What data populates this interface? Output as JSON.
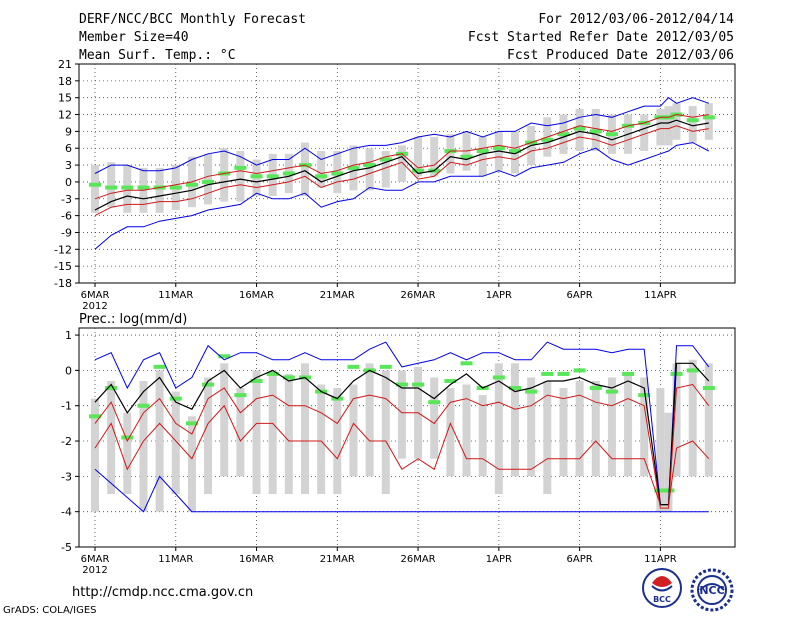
{
  "header": {
    "title": "DERF/NCC/BCC Monthly Forecast",
    "member_size": "Member Size=40",
    "variable": "Mean Surf. Temp.: °C",
    "period": "For 2012/03/06-2012/04/14",
    "start_date": "Fcst Started Refer Date 2012/03/05",
    "produced_date": "Fcst Produced Date 2012/03/06"
  },
  "footer": {
    "url": "http://cmdp.ncc.cma.gov.cn",
    "credit": "GrADS: COLA/IGES",
    "logo_bcc": "BCC",
    "logo_ncc": "NCC"
  },
  "colors": {
    "box": "#d3d3d3",
    "median": "#59e659",
    "mean": "#000000",
    "inner": "#d01818",
    "outer": "#0000e8",
    "grid": "#444444"
  },
  "chart_data": [
    {
      "type": "box-plume",
      "title": "Mean Surf. Temp.: °C",
      "ylabel": "°C",
      "ylim": [
        -18,
        21
      ],
      "yticks": [
        -18,
        -15,
        -12,
        -9,
        -6,
        -3,
        0,
        3,
        6,
        9,
        12,
        15,
        18,
        21
      ],
      "xlim": [
        0,
        39
      ],
      "xticks": [
        0,
        5,
        10,
        15,
        20,
        25,
        30,
        35
      ],
      "xticklabels": [
        "6MAR",
        "11MAR",
        "16MAR",
        "21MAR",
        "26MAR",
        "1APR",
        "6APR",
        "11APR"
      ],
      "year_label": "2012",
      "day_index": [
        0,
        1,
        2,
        3,
        4,
        5,
        6,
        7,
        8,
        9,
        10,
        11,
        12,
        13,
        14,
        15,
        16,
        17,
        18,
        19,
        20,
        21,
        22,
        23,
        24,
        25,
        26,
        27,
        28,
        29,
        30,
        31,
        32,
        33,
        34,
        35,
        35.5,
        36,
        37,
        38
      ],
      "box_low": [
        -5.5,
        -4.5,
        -5.5,
        -5.5,
        -5.5,
        -5,
        -4.5,
        -4,
        -3.5,
        -3.5,
        -2.5,
        -2.5,
        -2,
        -2.5,
        -1,
        -2,
        -1.5,
        -1.5,
        -1,
        0,
        1,
        1,
        1.5,
        2,
        1,
        2,
        1.5,
        3,
        4.5,
        5,
        5.5,
        5.5,
        5,
        5,
        5.5,
        6.5,
        6.5,
        7.5,
        7,
        7.5
      ],
      "box_high": [
        3,
        3.5,
        3,
        2.5,
        2.5,
        3,
        4.5,
        5,
        6,
        5.5,
        4,
        5,
        5,
        7,
        5.5,
        5.5,
        6.5,
        6,
        5.5,
        6.5,
        8,
        8,
        8.5,
        9,
        8,
        9,
        9,
        10,
        11.5,
        12,
        13,
        13,
        12,
        12,
        12,
        13,
        13.5,
        14,
        13.5,
        14
      ],
      "median": [
        -0.5,
        -1,
        -1,
        -1,
        -1,
        -1,
        -0.5,
        0,
        1.5,
        2.5,
        1,
        1,
        1.5,
        3,
        1,
        1.5,
        2.5,
        3,
        4,
        5,
        2,
        2,
        5.5,
        4.5,
        5.5,
        6,
        5.5,
        7,
        7.5,
        8.5,
        9.5,
        9,
        8.5,
        10,
        10.5,
        11.5,
        11.5,
        12,
        11,
        11.5
      ],
      "series": [
        {
          "name": "max",
          "color": "outer",
          "values": [
            -12,
            -9.5,
            -8,
            -8,
            -7,
            -6.5,
            -6,
            -5,
            -4.5,
            -4,
            -2,
            -3,
            -3,
            -2,
            -4.5,
            -3.5,
            -3,
            -1,
            -1.5,
            -1.5,
            0,
            0,
            1,
            1,
            1,
            2,
            1,
            2.5,
            3,
            3.5,
            5,
            6,
            4,
            3,
            4,
            5,
            5.5,
            6.5,
            7,
            5.5
          ]
        },
        {
          "name": "min",
          "color": "outer",
          "values": [
            1.5,
            3,
            3,
            2,
            2,
            2.5,
            4,
            5,
            5.5,
            4.5,
            3,
            4,
            4,
            6,
            4,
            5,
            6,
            6.5,
            6.5,
            7,
            8,
            8.5,
            8,
            9,
            8,
            9,
            9,
            10.5,
            10,
            10.5,
            11.5,
            12,
            11.5,
            12.5,
            13.5,
            13.5,
            15,
            14,
            15,
            14
          ]
        },
        {
          "name": "q_low",
          "color": "inner",
          "values": [
            -6,
            -4.5,
            -4,
            -4,
            -3.5,
            -3.5,
            -3,
            -2,
            -1,
            -0.5,
            -1,
            -0.5,
            0,
            1,
            -1,
            0,
            0.5,
            1.5,
            2.5,
            3.5,
            0.5,
            1,
            3.5,
            3,
            4,
            4.5,
            4,
            5.5,
            6,
            7,
            8,
            7.5,
            6.5,
            7.5,
            8.5,
            9.5,
            9.5,
            10,
            9,
            9.5
          ]
        },
        {
          "name": "mean",
          "color": "mean",
          "values": [
            -5,
            -3.5,
            -2.5,
            -3,
            -2.5,
            -2,
            -1.5,
            -0.5,
            0,
            0.5,
            0,
            0.5,
            1,
            2,
            0,
            1,
            2,
            2.5,
            3.5,
            4.5,
            1.5,
            2,
            4.5,
            4,
            5,
            5.5,
            5,
            6.5,
            7,
            8,
            9,
            8.5,
            7.5,
            8.5,
            9.5,
            10.5,
            10.5,
            11,
            10,
            10.5
          ]
        },
        {
          "name": "q_high",
          "color": "inner",
          "values": [
            -3,
            -2,
            -1.5,
            -1.5,
            -1,
            -0.5,
            0,
            1,
            1.5,
            2,
            1.5,
            2,
            2.5,
            3,
            1.5,
            2,
            3,
            3.5,
            4.5,
            5,
            2.5,
            3,
            5.5,
            5.5,
            6,
            6.5,
            6,
            7,
            8,
            9,
            10,
            9.5,
            9,
            10,
            10.5,
            11.5,
            11.5,
            12,
            11.5,
            12
          ]
        }
      ]
    },
    {
      "type": "box-plume",
      "title": "Prec.: log(mm/d)",
      "ylabel": "log(mm/d)",
      "ylim": [
        -5,
        1.2
      ],
      "yticks": [
        -5,
        -4,
        -3,
        -2,
        -1,
        0,
        1
      ],
      "xlim": [
        0,
        39
      ],
      "xticks": [
        0,
        5,
        10,
        15,
        20,
        25,
        30,
        35
      ],
      "xticklabels": [
        "6MAR",
        "11MAR",
        "16MAR",
        "21MAR",
        "26MAR",
        "1APR",
        "6APR",
        "11APR"
      ],
      "year_label": "2012",
      "day_index": [
        0,
        1,
        2,
        3,
        4,
        5,
        6,
        7,
        8,
        9,
        10,
        11,
        12,
        13,
        14,
        15,
        16,
        17,
        18,
        19,
        20,
        21,
        22,
        23,
        24,
        25,
        26,
        27,
        28,
        29,
        30,
        31,
        32,
        33,
        34,
        35,
        35.5,
        36,
        37,
        38
      ],
      "box_low": [
        -4,
        -3.5,
        -3.5,
        -4,
        -4,
        -3.5,
        -4,
        -3.5,
        -3,
        -3,
        -3.5,
        -3.5,
        -3.5,
        -3.5,
        -3.5,
        -3.5,
        -3,
        -3,
        -3.5,
        -2.5,
        -2.5,
        -2.5,
        -3,
        -3,
        -3,
        -3.5,
        -3,
        -3,
        -3.5,
        -3,
        -3,
        -3,
        -3,
        -3,
        -3,
        -4,
        -4,
        -3,
        -3,
        -3
      ],
      "box_high": [
        -0.8,
        -0.3,
        -1.2,
        -0.3,
        0,
        -0.6,
        -1.3,
        -0.2,
        0.2,
        -0.5,
        0,
        0,
        -0.1,
        0.2,
        -0.4,
        -0.5,
        -0.4,
        0.2,
        0,
        0,
        0.1,
        -0.2,
        -0.5,
        -0.4,
        -0.7,
        0.2,
        0.2,
        -0.2,
        -0.3,
        -0.5,
        -0.3,
        -0.3,
        -0.2,
        -0.1,
        -0.2,
        -0.5,
        -1.2,
        0.2,
        0.3,
        0.2
      ],
      "median": [
        -1.3,
        -0.5,
        -1.9,
        -1,
        0.1,
        -0.8,
        -1.5,
        -0.4,
        0.4,
        -0.7,
        -0.3,
        -0.1,
        -0.2,
        -0.2,
        -0.6,
        -0.8,
        0.1,
        0,
        0.1,
        -0.4,
        -0.4,
        -0.9,
        -0.3,
        0.2,
        -0.5,
        -0.2,
        -0.5,
        -0.6,
        -0.1,
        -0.1,
        0,
        -0.5,
        -0.6,
        -0.1,
        -0.7,
        -3.4,
        -3.4,
        -0.1,
        0,
        -0.5
      ],
      "series": [
        {
          "name": "max",
          "color": "outer",
          "values": [
            -2.8,
            -3.2,
            -3.6,
            -4,
            -3,
            -3.5,
            -4,
            -4,
            -4,
            -4,
            -4,
            -4,
            -4,
            -4,
            -4,
            -4,
            -4,
            -4,
            -4,
            -4,
            -4,
            -4,
            -4,
            -4,
            -4,
            -4,
            -4,
            -4,
            -4,
            -4,
            -4,
            -4,
            -4,
            -4,
            -4,
            -4,
            -4,
            -4,
            -4,
            -4
          ]
        },
        {
          "name": "min",
          "color": "outer",
          "values": [
            0.3,
            0.5,
            -0.5,
            0.3,
            0.5,
            -0.5,
            -0.2,
            0.7,
            0.3,
            0.5,
            0.5,
            0.3,
            0.3,
            0.5,
            0.3,
            0.3,
            0.3,
            0.6,
            0.8,
            0.1,
            0.2,
            0.3,
            0.5,
            0.3,
            0.5,
            0.5,
            0.3,
            0.3,
            0.8,
            0.6,
            0.6,
            0.6,
            0.5,
            0.6,
            0.6,
            -3.8,
            -3.8,
            0.7,
            0.7,
            0.1
          ]
        },
        {
          "name": "q_low",
          "color": "inner",
          "values": [
            -2.2,
            -1.5,
            -2.8,
            -2,
            -1.5,
            -2,
            -2.5,
            -1.5,
            -1,
            -2,
            -1.5,
            -1.5,
            -2,
            -2,
            -2,
            -2.5,
            -1.5,
            -2,
            -2,
            -2.8,
            -2.5,
            -2.8,
            -1.5,
            -2.5,
            -2.5,
            -2.8,
            -2.8,
            -2.8,
            -2.5,
            -2.5,
            -2.5,
            -2,
            -2.5,
            -2.5,
            -2.5,
            -3.8,
            -3.8,
            -2.2,
            -2,
            -2.5
          ]
        },
        {
          "name": "mean",
          "color": "mean",
          "values": [
            -0.9,
            -0.4,
            -1.2,
            -0.6,
            -0.2,
            -0.9,
            -1.1,
            -0.3,
            0,
            -0.5,
            -0.2,
            0,
            -0.3,
            -0.2,
            -0.6,
            -0.8,
            -0.3,
            0,
            -0.2,
            -0.5,
            -0.5,
            -0.8,
            -0.4,
            -0.1,
            -0.5,
            -0.3,
            -0.6,
            -0.5,
            -0.3,
            -0.3,
            -0.2,
            -0.4,
            -0.5,
            -0.3,
            -0.5,
            -3.8,
            -3.8,
            0.2,
            0.2,
            -0.3
          ]
        },
        {
          "name": "q_high",
          "color": "inner",
          "values": [
            -1.5,
            -0.9,
            -2,
            -1.2,
            -0.8,
            -1.5,
            -1.8,
            -0.8,
            -0.5,
            -1.2,
            -0.8,
            -0.7,
            -1,
            -1,
            -1.2,
            -1.5,
            -0.8,
            -0.7,
            -0.8,
            -1.2,
            -1.2,
            -1.5,
            -0.9,
            -0.8,
            -1,
            -0.9,
            -1.1,
            -1,
            -0.7,
            -0.8,
            -0.7,
            -0.9,
            -1,
            -0.8,
            -1,
            -3.9,
            -3.9,
            -0.5,
            -0.4,
            -1
          ]
        }
      ]
    }
  ]
}
